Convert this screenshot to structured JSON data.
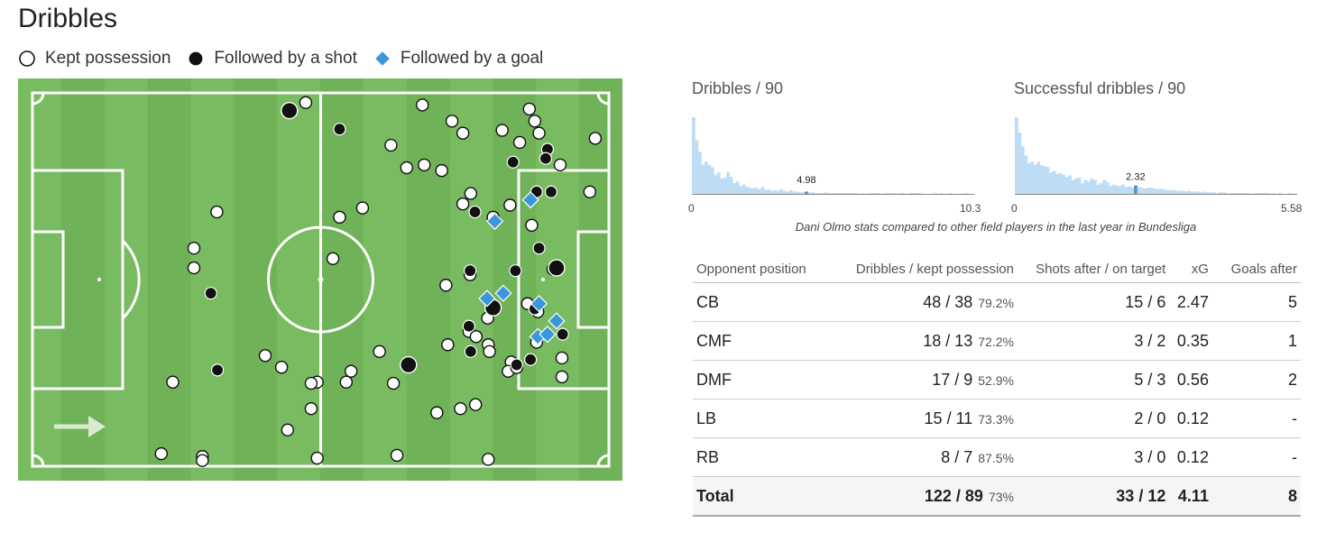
{
  "header": {
    "title": "Dribbles"
  },
  "legend": {
    "items": [
      {
        "label": "Kept possession",
        "marker": "white-circle"
      },
      {
        "label": "Followed by a shot",
        "marker": "black-circle"
      },
      {
        "label": "Followed by a goal",
        "marker": "blue-diamond"
      }
    ],
    "goal_color": "#3a97d9"
  },
  "chart_data": [
    {
      "type": "scatter",
      "name": "pitch-dribble-map",
      "x_range": [
        0,
        100
      ],
      "y_range": [
        0,
        100
      ],
      "attack_direction": "left-to-right",
      "colors": {
        "pitch": "#6fb257",
        "stripe": "#79bb60",
        "line": "#ffffff",
        "goal": "#3a97d9"
      },
      "points": [
        {
          "x": 47.6,
          "y": 6.0,
          "k": "kept"
        },
        {
          "x": 66.9,
          "y": 6.6,
          "k": "kept"
        },
        {
          "x": 84.6,
          "y": 7.6,
          "k": "kept"
        },
        {
          "x": 44.9,
          "y": 8.0,
          "k": "shot_big"
        },
        {
          "x": 71.8,
          "y": 10.6,
          "k": "kept"
        },
        {
          "x": 85.5,
          "y": 10.6,
          "k": "kept"
        },
        {
          "x": 53.2,
          "y": 12.6,
          "k": "shot"
        },
        {
          "x": 73.6,
          "y": 13.6,
          "k": "kept"
        },
        {
          "x": 80.1,
          "y": 12.9,
          "k": "kept"
        },
        {
          "x": 86.2,
          "y": 13.6,
          "k": "kept"
        },
        {
          "x": 95.5,
          "y": 14.9,
          "k": "kept"
        },
        {
          "x": 83.0,
          "y": 15.9,
          "k": "kept"
        },
        {
          "x": 61.7,
          "y": 16.6,
          "k": "kept"
        },
        {
          "x": 87.6,
          "y": 17.6,
          "k": "shot"
        },
        {
          "x": 87.3,
          "y": 19.9,
          "k": "shot"
        },
        {
          "x": 81.9,
          "y": 20.8,
          "k": "shot"
        },
        {
          "x": 67.2,
          "y": 21.5,
          "k": "kept"
        },
        {
          "x": 64.3,
          "y": 22.2,
          "k": "kept"
        },
        {
          "x": 89.7,
          "y": 21.5,
          "k": "kept"
        },
        {
          "x": 70.1,
          "y": 22.9,
          "k": "kept"
        },
        {
          "x": 85.8,
          "y": 28.2,
          "k": "shot"
        },
        {
          "x": 88.2,
          "y": 28.2,
          "k": "shot"
        },
        {
          "x": 74.9,
          "y": 28.6,
          "k": "kept"
        },
        {
          "x": 94.6,
          "y": 28.2,
          "k": "kept"
        },
        {
          "x": 84.8,
          "y": 30.2,
          "k": "goal"
        },
        {
          "x": 73.6,
          "y": 31.2,
          "k": "kept"
        },
        {
          "x": 57.0,
          "y": 32.2,
          "k": "kept"
        },
        {
          "x": 81.4,
          "y": 31.5,
          "k": "kept"
        },
        {
          "x": 75.6,
          "y": 33.2,
          "k": "shot"
        },
        {
          "x": 78.6,
          "y": 34.5,
          "k": "kept"
        },
        {
          "x": 53.2,
          "y": 34.5,
          "k": "kept"
        },
        {
          "x": 78.9,
          "y": 35.5,
          "k": "goal"
        },
        {
          "x": 85.0,
          "y": 36.5,
          "k": "kept"
        },
        {
          "x": 32.9,
          "y": 33.2,
          "k": "kept"
        },
        {
          "x": 86.2,
          "y": 42.2,
          "k": "shot"
        },
        {
          "x": 29.1,
          "y": 42.2,
          "k": "kept"
        },
        {
          "x": 52.1,
          "y": 44.8,
          "k": "kept"
        },
        {
          "x": 29.1,
          "y": 47.1,
          "k": "kept"
        },
        {
          "x": 88.5,
          "y": 47.4,
          "k": "kept"
        },
        {
          "x": 89.1,
          "y": 47.1,
          "k": "shot_big"
        },
        {
          "x": 82.3,
          "y": 47.8,
          "k": "shot"
        },
        {
          "x": 74.8,
          "y": 47.8,
          "k": "shot"
        },
        {
          "x": 74.8,
          "y": 48.8,
          "k": "kept"
        },
        {
          "x": 70.8,
          "y": 51.4,
          "k": "kept"
        },
        {
          "x": 31.9,
          "y": 53.4,
          "k": "shot"
        },
        {
          "x": 80.3,
          "y": 53.4,
          "k": "goal"
        },
        {
          "x": 77.6,
          "y": 54.7,
          "k": "goal"
        },
        {
          "x": 78.6,
          "y": 57.0,
          "k": "shot_big"
        },
        {
          "x": 84.3,
          "y": 56.0,
          "k": "kept"
        },
        {
          "x": 86.2,
          "y": 56.0,
          "k": "goal"
        },
        {
          "x": 85.5,
          "y": 57.3,
          "k": "shot"
        },
        {
          "x": 77.7,
          "y": 59.6,
          "k": "kept"
        },
        {
          "x": 86.0,
          "y": 58.0,
          "k": "kept"
        },
        {
          "x": 89.1,
          "y": 60.3,
          "k": "goal"
        },
        {
          "x": 74.6,
          "y": 61.6,
          "k": "shot"
        },
        {
          "x": 74.6,
          "y": 62.9,
          "k": "kept"
        },
        {
          "x": 90.1,
          "y": 63.6,
          "k": "shot"
        },
        {
          "x": 75.8,
          "y": 64.2,
          "k": "kept"
        },
        {
          "x": 86.0,
          "y": 64.2,
          "k": "goal"
        },
        {
          "x": 71.1,
          "y": 66.2,
          "k": "kept"
        },
        {
          "x": 77.8,
          "y": 66.2,
          "k": "kept"
        },
        {
          "x": 85.8,
          "y": 65.6,
          "k": "kept"
        },
        {
          "x": 87.6,
          "y": 63.6,
          "k": "goal"
        },
        {
          "x": 74.9,
          "y": 67.9,
          "k": "shot"
        },
        {
          "x": 78.0,
          "y": 67.9,
          "k": "kept"
        },
        {
          "x": 59.8,
          "y": 67.9,
          "k": "kept"
        },
        {
          "x": 40.9,
          "y": 68.9,
          "k": "kept"
        },
        {
          "x": 84.8,
          "y": 69.9,
          "k": "shot"
        },
        {
          "x": 90.0,
          "y": 69.5,
          "k": "kept"
        },
        {
          "x": 81.6,
          "y": 70.5,
          "k": "kept"
        },
        {
          "x": 64.6,
          "y": 71.2,
          "k": "shot_big"
        },
        {
          "x": 82.5,
          "y": 71.2,
          "k": "shot"
        },
        {
          "x": 43.6,
          "y": 71.8,
          "k": "kept"
        },
        {
          "x": 55.1,
          "y": 72.8,
          "k": "kept"
        },
        {
          "x": 81.1,
          "y": 72.8,
          "k": "kept"
        },
        {
          "x": 82.5,
          "y": 71.9,
          "k": "kept"
        },
        {
          "x": 33.0,
          "y": 72.5,
          "k": "shot"
        },
        {
          "x": 54.3,
          "y": 75.5,
          "k": "kept"
        },
        {
          "x": 49.5,
          "y": 75.5,
          "k": "kept"
        },
        {
          "x": 48.5,
          "y": 75.8,
          "k": "kept"
        },
        {
          "x": 62.1,
          "y": 75.8,
          "k": "kept"
        },
        {
          "x": 25.6,
          "y": 75.5,
          "k": "kept"
        },
        {
          "x": 90.0,
          "y": 74.2,
          "k": "kept"
        },
        {
          "x": 48.5,
          "y": 82.1,
          "k": "kept"
        },
        {
          "x": 75.7,
          "y": 81.1,
          "k": "kept"
        },
        {
          "x": 73.2,
          "y": 82.1,
          "k": "kept"
        },
        {
          "x": 69.3,
          "y": 83.1,
          "k": "kept"
        },
        {
          "x": 44.6,
          "y": 87.4,
          "k": "kept"
        },
        {
          "x": 23.7,
          "y": 93.3,
          "k": "kept"
        },
        {
          "x": 30.5,
          "y": 94.0,
          "k": "kept"
        },
        {
          "x": 30.5,
          "y": 95.0,
          "k": "kept"
        },
        {
          "x": 62.7,
          "y": 93.7,
          "k": "kept"
        },
        {
          "x": 49.5,
          "y": 94.4,
          "k": "kept"
        },
        {
          "x": 77.8,
          "y": 94.7,
          "k": "kept"
        }
      ]
    },
    {
      "type": "bar",
      "name": "dribbles-per-90",
      "title": "Dribbles / 90",
      "xlim": [
        0,
        10.3
      ],
      "min_label": "0",
      "max_label": "10.3",
      "highlight_label": "4.98",
      "highlight_index": 36,
      "values": [
        100,
        70,
        55,
        38,
        42,
        38,
        35,
        25,
        28,
        20,
        21,
        28,
        22,
        14,
        16,
        10,
        12,
        9,
        8,
        7,
        8,
        6,
        9,
        5,
        6,
        4,
        5,
        4,
        6,
        4,
        3,
        5,
        3,
        3,
        2,
        2,
        3,
        2,
        2,
        1,
        1,
        1,
        2,
        1,
        1,
        1,
        1,
        1,
        1,
        1,
        1,
        1,
        1,
        0,
        1,
        0,
        1,
        1,
        1,
        1,
        0,
        1,
        1,
        1,
        1,
        0,
        1,
        1,
        0,
        1,
        1,
        1,
        1,
        0,
        0,
        0,
        0,
        1,
        0,
        1,
        0,
        0,
        1,
        0,
        0,
        0,
        0,
        1,
        0,
        0
      ],
      "bar_color": "#bedcf4",
      "highlight_color": "#4a94c9"
    },
    {
      "type": "bar",
      "name": "successful-dribbles-per-90",
      "title": "Successful dribbles / 90",
      "xlim": [
        0,
        5.58
      ],
      "min_label": "0",
      "max_label": "5.58",
      "highlight_label": "2.32",
      "highlight_index": 38,
      "values": [
        100,
        80,
        62,
        50,
        40,
        42,
        38,
        42,
        37,
        36,
        35,
        28,
        30,
        26,
        27,
        25,
        22,
        24,
        18,
        20,
        21,
        14,
        18,
        16,
        20,
        18,
        12,
        14,
        18,
        15,
        10,
        12,
        11,
        10,
        12,
        9,
        10,
        8,
        11,
        9,
        8,
        7,
        8,
        8,
        7,
        6,
        7,
        6,
        5,
        5,
        5,
        4,
        4,
        4,
        3,
        4,
        3,
        3,
        3,
        2,
        3,
        2,
        2,
        2,
        1,
        2,
        2,
        1,
        1,
        1,
        1,
        1,
        1,
        1,
        1,
        0,
        1,
        1,
        1,
        1,
        1,
        0,
        1,
        0,
        1,
        0,
        0,
        1,
        0,
        0
      ],
      "bar_color": "#bedcf4",
      "highlight_color": "#4a94c9"
    },
    {
      "type": "table",
      "name": "opponent-position-table",
      "caption": "Dani Olmo stats compared to other field players in the last year in Bundesliga",
      "columns": [
        "Opponent position",
        "Dribbles / kept possession",
        "Shots after / on target",
        "xG",
        "Goals after"
      ],
      "rows": [
        {
          "pos": "CB",
          "drib": "48 / 38",
          "pct": "79.2%",
          "shots": "15 / 6",
          "xg": "2.47",
          "goals": "5"
        },
        {
          "pos": "CMF",
          "drib": "18 / 13",
          "pct": "72.2%",
          "shots": "3 / 2",
          "xg": "0.35",
          "goals": "1"
        },
        {
          "pos": "DMF",
          "drib": "17 / 9",
          "pct": "52.9%",
          "shots": "5 / 3",
          "xg": "0.56",
          "goals": "2"
        },
        {
          "pos": "LB",
          "drib": "15 / 11",
          "pct": "73.3%",
          "shots": "2 / 0",
          "xg": "0.12",
          "goals": "-"
        },
        {
          "pos": "RB",
          "drib": "8 / 7",
          "pct": "87.5%",
          "shots": "3 / 0",
          "xg": "0.12",
          "goals": "-"
        }
      ],
      "total": {
        "pos": "Total",
        "drib": "122 / 89",
        "pct": "73%",
        "shots": "33 / 12",
        "xg": "4.11",
        "goals": "8"
      }
    }
  ]
}
